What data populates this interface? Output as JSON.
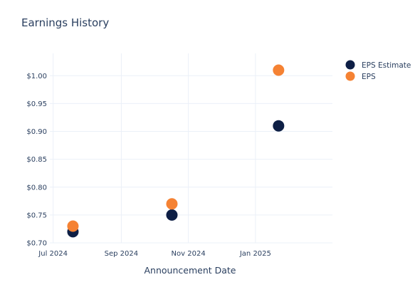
{
  "chart_data": {
    "type": "scatter",
    "title": "Earnings History",
    "xlabel": "Announcement Date",
    "ylabel": "",
    "x_ticks": [
      "Jul 2024",
      "Sep 2024",
      "Nov 2024",
      "Jan 2025"
    ],
    "y_ticks": [
      "$0.70",
      "$0.75",
      "$0.80",
      "$0.85",
      "$0.90",
      "$0.95",
      "$1.00"
    ],
    "ylim": [
      0.7,
      1.04
    ],
    "xlim": [
      "2024-06-28",
      "2025-03-12"
    ],
    "grid": true,
    "legend_position": "top-right",
    "series": [
      {
        "name": "EPS Estimate",
        "color": "#0e1f45",
        "points": [
          {
            "x": "2024-07-19",
            "y": 0.72
          },
          {
            "x": "2024-10-17",
            "y": 0.75
          },
          {
            "x": "2025-01-22",
            "y": 0.91
          }
        ]
      },
      {
        "name": "EPS",
        "color": "#f58233",
        "points": [
          {
            "x": "2024-07-19",
            "y": 0.73
          },
          {
            "x": "2024-10-17",
            "y": 0.77
          },
          {
            "x": "2025-01-22",
            "y": 1.01
          }
        ]
      }
    ]
  }
}
